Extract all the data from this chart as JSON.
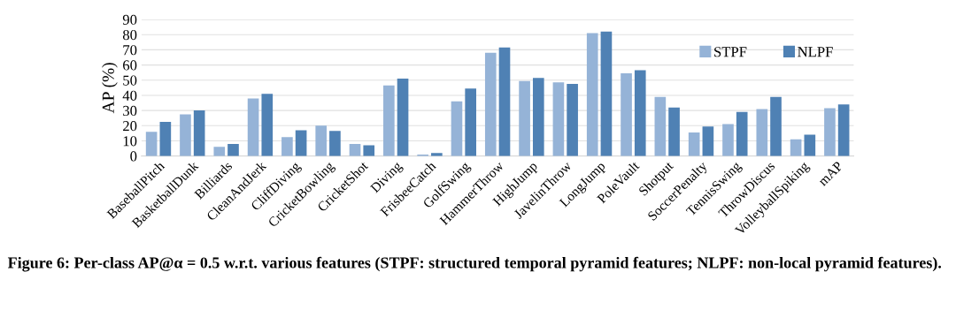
{
  "chart_data": {
    "type": "bar",
    "ylabel": "AP (%)",
    "categories": [
      "BaseballPitch",
      "BasketballDunk",
      "Billiards",
      "CleanAndJerk",
      "CliffDiving",
      "CricketBowling",
      "CricketShot",
      "Diving",
      "FrisbeeCatch",
      "GolfSwing",
      "HammerThrow",
      "HighJump",
      "JavelinThrow",
      "LongJump",
      "PoleVault",
      "Shotput",
      "SoccerPenalty",
      "TennisSwing",
      "ThrowDiscus",
      "VolleyballSpiking",
      "mAP"
    ],
    "series": [
      {
        "name": "STPF",
        "color": "#95b3d7",
        "values": [
          16,
          27.5,
          6,
          38,
          12.5,
          20,
          8,
          46.5,
          1,
          36,
          68,
          49.5,
          48.5,
          81,
          54.5,
          39,
          15.5,
          21,
          31,
          11,
          31.5
        ]
      },
      {
        "name": "NLPF",
        "color": "#4f81b4",
        "values": [
          22.5,
          30,
          8,
          41,
          17,
          16.5,
          7,
          51,
          2,
          44.5,
          71.5,
          51.5,
          47.5,
          82,
          56.5,
          32,
          19.5,
          29,
          39,
          14,
          34
        ]
      }
    ],
    "ylim": [
      0,
      90
    ],
    "yticks": [
      0,
      10,
      20,
      30,
      40,
      50,
      60,
      70,
      80,
      90
    ],
    "grid": "y",
    "legend": "top right",
    "annotations": [
      "Figure 6: Per-class AP@α = 0.5 w.r.t. various features (STPF: structured temporal pyramid features; NLPF: non-local pyramid features)."
    ]
  }
}
